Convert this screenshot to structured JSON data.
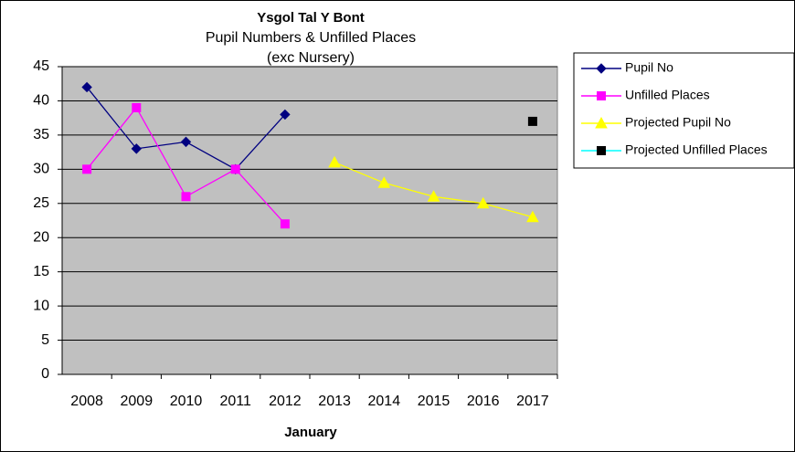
{
  "chart_data": {
    "type": "line",
    "title": "Ysgol Tal Y Bont",
    "subtitle": [
      "Pupil Numbers & Unfilled Places",
      "(exc Nursery)"
    ],
    "x_label": "January",
    "categories": [
      "2008",
      "2009",
      "2010",
      "2011",
      "2012",
      "2013",
      "2014",
      "2015",
      "2016",
      "2017"
    ],
    "series": [
      {
        "name": "Pupil No",
        "color": "#000080",
        "marker": "diamond",
        "marker_color": "#000080",
        "values": [
          42,
          33,
          34,
          30,
          38,
          null,
          null,
          null,
          null,
          null
        ]
      },
      {
        "name": "Unfilled Places",
        "color": "#ff00ff",
        "marker": "square",
        "marker_color": "#ff00ff",
        "values": [
          30,
          39,
          26,
          30,
          22,
          null,
          null,
          null,
          null,
          null
        ]
      },
      {
        "name": "Projected Pupil No",
        "color": "#ffff00",
        "marker": "triangle",
        "marker_color": "#ffff00",
        "values": [
          null,
          null,
          null,
          null,
          null,
          31,
          28,
          26,
          25,
          23
        ]
      },
      {
        "name": "Projected Unfilled Places",
        "color": "#00ffff",
        "marker": "square",
        "marker_color": "#000000",
        "values": [
          null,
          null,
          null,
          null,
          null,
          null,
          null,
          null,
          null,
          37
        ]
      }
    ],
    "ylim": [
      0,
      45
    ],
    "yticks": [
      0,
      5,
      10,
      15,
      20,
      25,
      30,
      35,
      40,
      45
    ],
    "grid": true,
    "plot_background": "#c0c0c0",
    "legend": "right"
  }
}
